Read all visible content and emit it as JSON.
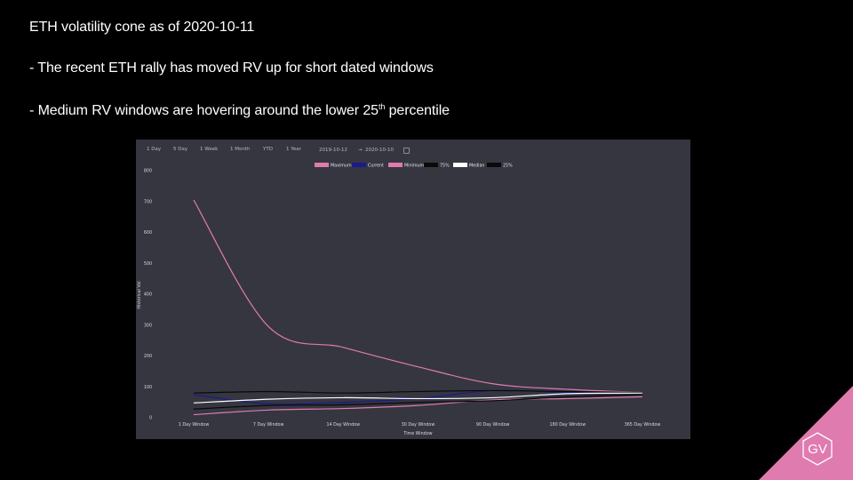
{
  "slide": {
    "title": "ETH volatility cone as of 2020-10-11",
    "bullet1": "- The recent ETH rally has moved RV up for short dated windows",
    "bullet2_pre": "- Medium RV windows are hovering around the lower 25",
    "bullet2_sup": "th",
    "bullet2_post": " percentile",
    "logo_text": "GV",
    "logo_color": "#e07bb0"
  },
  "controls": {
    "range_buttons": [
      "1 Day",
      "5 Day",
      "1 Week",
      "1 Month",
      "YTD",
      "1 Year"
    ],
    "date_from": "2019-10-12",
    "date_sep": "→",
    "date_to": "2020-10-10"
  },
  "chart_data": {
    "type": "line",
    "title": "",
    "xlabel": "Time Window",
    "ylabel": "Historical Vol",
    "categories": [
      "1 Day Window",
      "7 Day Window",
      "14 Day Window",
      "30 Day Window",
      "90 Day Window",
      "180 Day Window",
      "365 Day Window"
    ],
    "ylim": [
      0,
      800
    ],
    "yticks": [
      0,
      100,
      200,
      300,
      400,
      500,
      600,
      700,
      800
    ],
    "grid": false,
    "legend_position": "top-center",
    "series": [
      {
        "name": "Maximum",
        "color": "#e07bb0",
        "values": [
          705,
          295,
          228,
          165,
          110,
          92,
          82
        ]
      },
      {
        "name": "Current",
        "color": "#1a1a8c",
        "values": [
          75,
          45,
          50,
          62,
          88,
          82,
          80
        ]
      },
      {
        "name": "Minimum",
        "color": "#e07bb0",
        "values": [
          10,
          25,
          30,
          40,
          58,
          62,
          68
        ]
      },
      {
        "name": "75%",
        "color": "#0a0a0a",
        "values": [
          80,
          85,
          80,
          85,
          88,
          85,
          82
        ]
      },
      {
        "name": "Median",
        "color": "#ffffff",
        "values": [
          48,
          60,
          65,
          62,
          65,
          78,
          80
        ]
      },
      {
        "name": "25%",
        "color": "#0a0a0a",
        "values": [
          28,
          40,
          42,
          50,
          55,
          68,
          75
        ]
      }
    ]
  }
}
